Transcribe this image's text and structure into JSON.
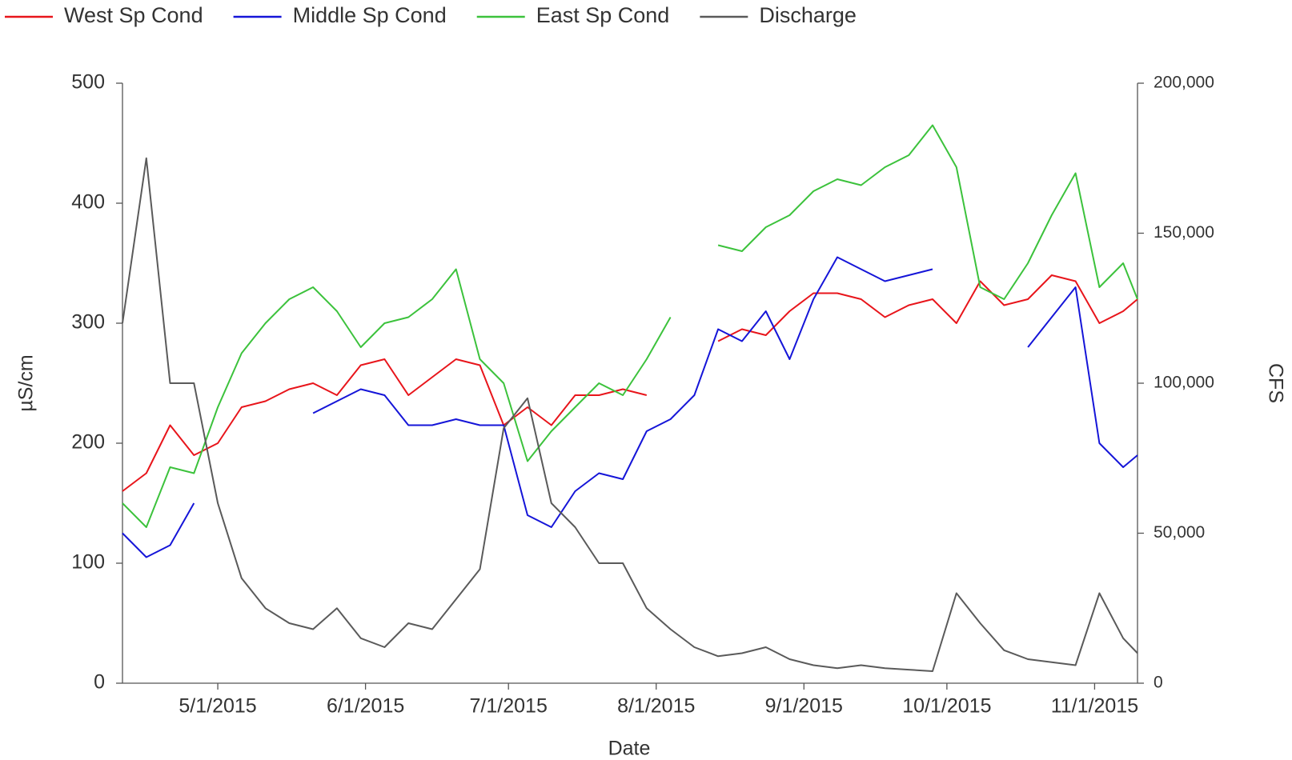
{
  "chart_data": {
    "type": "line",
    "x_label": "Date",
    "y_label": "µS/cm",
    "y2_label": "CFS",
    "x": [
      "2015-04-11",
      "2015-04-16",
      "2015-04-21",
      "2015-04-26",
      "2015-05-01",
      "2015-05-06",
      "2015-05-11",
      "2015-05-16",
      "2015-05-21",
      "2015-05-26",
      "2015-05-31",
      "2015-06-05",
      "2015-06-10",
      "2015-06-15",
      "2015-06-20",
      "2015-06-25",
      "2015-06-30",
      "2015-07-05",
      "2015-07-10",
      "2015-07-15",
      "2015-07-20",
      "2015-07-25",
      "2015-07-30",
      "2015-08-04",
      "2015-08-09",
      "2015-08-14",
      "2015-08-19",
      "2015-08-24",
      "2015-08-29",
      "2015-09-03",
      "2015-09-08",
      "2015-09-13",
      "2015-09-18",
      "2015-09-23",
      "2015-09-28",
      "2015-10-03",
      "2015-10-08",
      "2015-10-13",
      "2015-10-18",
      "2015-10-23",
      "2015-10-28",
      "2015-11-02",
      "2015-11-07",
      "2015-11-10"
    ],
    "series": [
      {
        "name": "West Sp Cond",
        "color": "#e8151b",
        "values": [
          160,
          175,
          215,
          190,
          200,
          230,
          235,
          245,
          250,
          240,
          265,
          270,
          240,
          255,
          270,
          265,
          215,
          230,
          215,
          240,
          240,
          245,
          240,
          null,
          null,
          285,
          295,
          290,
          310,
          325,
          325,
          320,
          305,
          315,
          320,
          300,
          335,
          315,
          320,
          340,
          335,
          300,
          310,
          320
        ]
      },
      {
        "name": "Middle Sp Cond",
        "color": "#1515d8",
        "values": [
          125,
          105,
          115,
          150,
          null,
          null,
          null,
          null,
          225,
          235,
          245,
          240,
          215,
          215,
          220,
          215,
          215,
          140,
          130,
          160,
          175,
          170,
          210,
          220,
          240,
          295,
          285,
          310,
          270,
          320,
          355,
          345,
          335,
          340,
          345,
          null,
          null,
          null,
          280,
          305,
          330,
          200,
          180,
          190
        ]
      },
      {
        "name": "East Sp Cond",
        "color": "#3cc23c",
        "values": [
          150,
          130,
          180,
          175,
          230,
          275,
          300,
          320,
          330,
          310,
          280,
          300,
          305,
          320,
          345,
          270,
          250,
          185,
          210,
          230,
          250,
          240,
          270,
          305,
          null,
          365,
          360,
          380,
          390,
          410,
          420,
          415,
          430,
          440,
          465,
          430,
          330,
          320,
          350,
          390,
          425,
          330,
          350,
          320
        ]
      },
      {
        "name": "Discharge",
        "color": "#5a5a5a",
        "axis": "y2",
        "values": [
          120000,
          175000,
          100000,
          100000,
          60000,
          35000,
          25000,
          20000,
          18000,
          25000,
          15000,
          12000,
          20000,
          18000,
          28000,
          38000,
          85000,
          95000,
          60000,
          52000,
          40000,
          40000,
          25000,
          18000,
          12000,
          9000,
          10000,
          12000,
          8000,
          6000,
          5000,
          6000,
          5000,
          4500,
          4000,
          30000,
          20000,
          11000,
          8000,
          7000,
          6000,
          30000,
          15000,
          10000
        ]
      }
    ],
    "xlim": [
      "2015-04-11",
      "2015-11-10"
    ],
    "xticks": [
      {
        "value": "2015-05-01",
        "label": "5/1/2015"
      },
      {
        "value": "2015-06-01",
        "label": "6/1/2015"
      },
      {
        "value": "2015-07-01",
        "label": "7/1/2015"
      },
      {
        "value": "2015-08-01",
        "label": "8/1/2015"
      },
      {
        "value": "2015-09-01",
        "label": "9/1/2015"
      },
      {
        "value": "2015-10-01",
        "label": "10/1/2015"
      },
      {
        "value": "2015-11-01",
        "label": "11/1/2015"
      }
    ],
    "ylim": [
      0,
      500
    ],
    "yticks": [
      0,
      100,
      200,
      300,
      400,
      500
    ],
    "y2lim": [
      0,
      200000
    ],
    "y2ticks": [
      0,
      {
        "value": 50000,
        "label": "50,000"
      },
      {
        "value": 100000,
        "label": "100,000"
      },
      {
        "value": 150000,
        "label": "150,000"
      },
      {
        "value": 200000,
        "label": "200,000"
      }
    ],
    "legend": "top-left"
  }
}
